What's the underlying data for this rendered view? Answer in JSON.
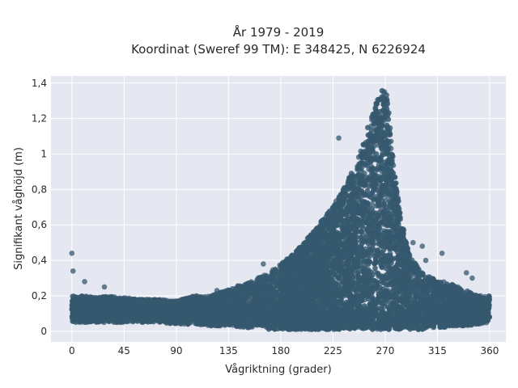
{
  "chart_data": {
    "type": "scatter",
    "title_line1": "År 1979 - 2019",
    "title_line2": "Koordinat (Sweref 99 TM): E 348425, N 6226924",
    "xlabel": "Vågriktning (grader)",
    "ylabel": "Signifikant våghöjd (m)",
    "xlim": [
      -18,
      374
    ],
    "ylim": [
      -0.06,
      1.44
    ],
    "xticks": [
      0,
      45,
      90,
      135,
      180,
      225,
      270,
      315,
      360
    ],
    "xtick_labels": [
      "0",
      "45",
      "90",
      "135",
      "180",
      "225",
      "270",
      "315",
      "360"
    ],
    "yticks": [
      0,
      0.2,
      0.4,
      0.6,
      0.8,
      1.0,
      1.2,
      1.4
    ],
    "ytick_labels": [
      "0",
      "0,2",
      "0,4",
      "0,6",
      "0,8",
      "1",
      "1,2",
      "1,4"
    ],
    "grid": true,
    "colors": {
      "marker": "#35586f",
      "plot_background": "#e5e8f0",
      "gridline": "#ffffff"
    },
    "envelope": {
      "direction": [
        0,
        10,
        20,
        30,
        45,
        60,
        75,
        90,
        105,
        120,
        135,
        150,
        160,
        170,
        180,
        190,
        200,
        210,
        220,
        230,
        240,
        245,
        250,
        255,
        260,
        265,
        268,
        270,
        272,
        275,
        280,
        285,
        290,
        300,
        310,
        320,
        330,
        340,
        350,
        360
      ],
      "max_height": [
        0.2,
        0.2,
        0.19,
        0.2,
        0.19,
        0.18,
        0.18,
        0.17,
        0.2,
        0.2,
        0.24,
        0.27,
        0.3,
        0.33,
        0.38,
        0.43,
        0.5,
        0.58,
        0.66,
        0.76,
        0.88,
        0.95,
        1.05,
        1.15,
        1.25,
        1.33,
        1.38,
        1.39,
        1.33,
        1.1,
        0.8,
        0.6,
        0.45,
        0.34,
        0.3,
        0.28,
        0.26,
        0.23,
        0.2,
        0.2
      ],
      "min_height": [
        0.05,
        0.05,
        0.05,
        0.05,
        0.05,
        0.05,
        0.05,
        0.04,
        0.04,
        0.03,
        0.03,
        0.02,
        0.02,
        0.01,
        0.01,
        0.01,
        0.01,
        0.01,
        0.01,
        0.01,
        0.01,
        0.01,
        0.01,
        0.01,
        0.01,
        0.01,
        0.01,
        0.01,
        0.01,
        0.01,
        0.01,
        0.01,
        0.01,
        0.01,
        0.02,
        0.02,
        0.03,
        0.03,
        0.04,
        0.05
      ]
    },
    "outliers": [
      {
        "x": 0,
        "y": 0.44
      },
      {
        "x": 1,
        "y": 0.34
      },
      {
        "x": 11,
        "y": 0.28
      },
      {
        "x": 28,
        "y": 0.25
      },
      {
        "x": 125,
        "y": 0.23
      },
      {
        "x": 165,
        "y": 0.38
      },
      {
        "x": 230,
        "y": 1.09
      },
      {
        "x": 294,
        "y": 0.5
      },
      {
        "x": 302,
        "y": 0.48
      },
      {
        "x": 305,
        "y": 0.4
      },
      {
        "x": 319,
        "y": 0.44
      },
      {
        "x": 340,
        "y": 0.33
      },
      {
        "x": 345,
        "y": 0.3
      }
    ]
  }
}
